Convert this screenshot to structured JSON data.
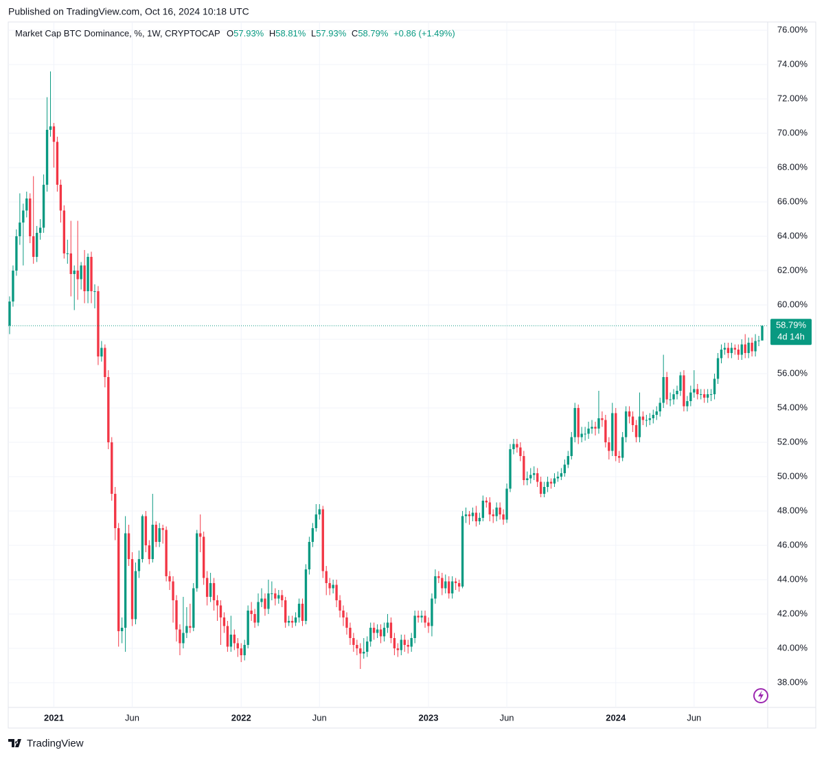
{
  "header": {
    "published": "Published on TradingView.com, Oct 16, 2024 10:18 UTC",
    "symbol": "Market Cap BTC Dominance, %, 1W, CRYPTOCAP",
    "fields": [
      {
        "key": "O",
        "value": "57.93%"
      },
      {
        "key": "H",
        "value": "58.81%"
      },
      {
        "key": "L",
        "value": "57.93%"
      },
      {
        "key": "C",
        "value": "58.79%"
      }
    ],
    "change": "+0.86 (+1.49%)"
  },
  "footer": "TradingView",
  "chart_data": {
    "type": "candlestick",
    "colors": {
      "up": "#089981",
      "down": "#f23645"
    },
    "price_tag": "58.79%",
    "countdown": "4d 14h",
    "ylim": [
      36.56,
      76.44
    ],
    "yticks": [
      {
        "value": 38,
        "label": "38.00%"
      },
      {
        "value": 40,
        "label": "40.00%"
      },
      {
        "value": 42,
        "label": "42.00%"
      },
      {
        "value": 44,
        "label": "44.00%"
      },
      {
        "value": 46,
        "label": "46.00%"
      },
      {
        "value": 48,
        "label": "48.00%"
      },
      {
        "value": 50,
        "label": "50.00%"
      },
      {
        "value": 52,
        "label": "52.00%"
      },
      {
        "value": 54,
        "label": "54.00%"
      },
      {
        "value": 56,
        "label": "56.00%"
      },
      {
        "value": 58,
        "label": "58.00%"
      },
      {
        "value": 60,
        "label": "60.00%"
      },
      {
        "value": 62,
        "label": "62.00%"
      },
      {
        "value": 64,
        "label": "64.00%"
      },
      {
        "value": 66,
        "label": "66.00%"
      },
      {
        "value": 68,
        "label": "68.00%"
      },
      {
        "value": 70,
        "label": "70.00%"
      },
      {
        "value": 72,
        "label": "72.00%"
      },
      {
        "value": 74,
        "label": "74.00%"
      },
      {
        "value": 76,
        "label": "76.00%"
      }
    ],
    "grid": true,
    "categories": [
      null,
      null,
      null,
      null,
      null,
      null,
      null,
      null,
      null,
      null,
      null,
      null,
      null,
      "2021",
      null,
      null,
      null,
      null,
      null,
      null,
      null,
      null,
      null,
      null,
      null,
      null,
      null,
      null,
      null,
      null,
      null,
      null,
      null,
      null,
      null,
      null,
      "Jun",
      null,
      null,
      null,
      null,
      null,
      null,
      null,
      null,
      null,
      null,
      null,
      null,
      null,
      null,
      null,
      null,
      null,
      null,
      null,
      null,
      null,
      null,
      null,
      null,
      null,
      null,
      null,
      null,
      null,
      null,
      null,
      "2022",
      null,
      null,
      null,
      null,
      null,
      null,
      null,
      null,
      null,
      null,
      null,
      null,
      null,
      null,
      null,
      null,
      null,
      null,
      null,
      null,
      null,
      null,
      "Jun",
      null,
      null,
      null,
      null,
      null,
      null,
      null,
      null,
      null,
      null,
      null,
      null,
      null,
      null,
      null,
      null,
      null,
      null,
      null,
      null,
      null,
      null,
      null,
      null,
      null,
      null,
      null,
      null,
      null,
      null,
      null,
      "2023",
      null,
      null,
      null,
      null,
      null,
      null,
      null,
      null,
      null,
      null,
      null,
      null,
      null,
      null,
      null,
      null,
      null,
      null,
      null,
      null,
      null,
      null,
      "Jun",
      null,
      null,
      null,
      null,
      null,
      null,
      null,
      null,
      null,
      null,
      null,
      null,
      null,
      null,
      null,
      null,
      null,
      null,
      null,
      null,
      null,
      null,
      null,
      null,
      null,
      null,
      null,
      null,
      null,
      null,
      null,
      "2024",
      null,
      null,
      null,
      null,
      null,
      null,
      null,
      null,
      null,
      null,
      null,
      null,
      null,
      null,
      null,
      null,
      null,
      null,
      null,
      null,
      null,
      null,
      "Jun",
      null,
      null,
      null,
      null,
      null,
      null,
      null,
      null,
      null,
      null,
      null,
      null,
      null,
      null,
      null,
      null,
      null,
      null,
      null,
      null
    ],
    "open": [
      58.8,
      60.2,
      62,
      64,
      64.8,
      65.5,
      66.2,
      64,
      62.8,
      64.2,
      64.5,
      67,
      70.2,
      70.4,
      69.5,
      67,
      65.5,
      63,
      63,
      61.8,
      62,
      61.5,
      62.3,
      60.8,
      62.8,
      60.8,
      60.8,
      57,
      57.5,
      55.8,
      52,
      49,
      47,
      41,
      41.2,
      46.7,
      45.2,
      41.7,
      44.5,
      45.2,
      47.7,
      46,
      45.2,
      47.2,
      46.2,
      47,
      46.9,
      44.2,
      43.9,
      42.8,
      41.1,
      40.3,
      40.9,
      41.3,
      41.2,
      43.5,
      46.7,
      46.5,
      44.1,
      43,
      43.8,
      42.8,
      42.5,
      41.8,
      41.3,
      40.1,
      40.8,
      40.3,
      40,
      39.6,
      40.2,
      42.2,
      42,
      41.5,
      42.7,
      42.9,
      42.3,
      43.2,
      43.2,
      42.9,
      43.1,
      42.8,
      41.5,
      41.6,
      41.5,
      41.8,
      42.6,
      41.6,
      44.6,
      46.2,
      47,
      47.8,
      48.1,
      44.5,
      43.8,
      43.5,
      43.7,
      42.8,
      42.2,
      41.8,
      41.2,
      40.6,
      40.2,
      40,
      39.7,
      39.8,
      40.4,
      41.2,
      40.9,
      41.1,
      40.7,
      41.2,
      41.5,
      40.6,
      40,
      39.9,
      40.5,
      40.2,
      40.1,
      40.6,
      41.9,
      41.8,
      41.9,
      41.5,
      41.3,
      42.9,
      44.2,
      44.1,
      43.5,
      43.9,
      43.2,
      43.9,
      43.8,
      43.6,
      47.7,
      47.8,
      47.7,
      47.9,
      47.4,
      47.6,
      48.6,
      48.5,
      47.8,
      47.7,
      48.2,
      47.8,
      47.5,
      49.3,
      51.6,
      51.9,
      51.7,
      51.2,
      49.8,
      49.9,
      50.1,
      50.2,
      49.7,
      49,
      49.4,
      49.7,
      49.6,
      49.9,
      50,
      50.2,
      50.7,
      51.2,
      52.3,
      54,
      52.3,
      52.5,
      52.5,
      52.8,
      52.9,
      52.8,
      53.4,
      53.3,
      52,
      51.5,
      53.7,
      51.2,
      51.1,
      52.3,
      53.8,
      53.5,
      53,
      52.3,
      53.5,
      53.3,
      53.3,
      53.4,
      53.6,
      53.8,
      54.3,
      55.8,
      54.5,
      54.5,
      54.8,
      55,
      55.9,
      54.1,
      54.4,
      54.9,
      55.1,
      54.8,
      54.8,
      54.6,
      54.8,
      54.8,
      55.7,
      56.9,
      57.4,
      57.5,
      57.2,
      57.5,
      57.4,
      57.1,
      57.7,
      57.2,
      57.8,
      57.3,
      57.9,
      57.93
    ],
    "high": [
      60.5,
      62.3,
      64.4,
      66.5,
      65.9,
      66.6,
      66.5,
      67.5,
      64.6,
      65,
      67.6,
      72.1,
      73.6,
      70.6,
      69.8,
      67.3,
      65.8,
      63.8,
      64.9,
      62.3,
      64.9,
      62.5,
      63.2,
      63,
      63.1,
      61.2,
      61.1,
      57.9,
      57.7,
      56.2,
      52.3,
      49.4,
      47.3,
      41.8,
      47.7,
      47.2,
      45.6,
      45,
      45.7,
      47.8,
      48,
      46.3,
      49,
      47.4,
      47.3,
      47.2,
      47.1,
      44.5,
      44.2,
      43.1,
      41.4,
      43,
      42.4,
      42.6,
      43.8,
      46.9,
      47.8,
      46.8,
      44.5,
      44.4,
      44.1,
      43.1,
      42.8,
      42.1,
      41.6,
      41.9,
      41.1,
      40.6,
      40.3,
      40.5,
      42.5,
      42.7,
      42.3,
      43.2,
      43.5,
      43.2,
      44,
      43.9,
      43.5,
      43.4,
      43.4,
      43,
      41.9,
      41.9,
      42.1,
      42.9,
      42.9,
      44.9,
      46.5,
      47.3,
      48.4,
      48.4,
      48.3,
      44.8,
      44.1,
      44,
      44,
      43.1,
      42.5,
      42.1,
      41.5,
      40.9,
      40.5,
      40.3,
      40.6,
      40.7,
      41.5,
      41.5,
      41.4,
      41.4,
      41.5,
      42,
      41.8,
      40.9,
      40.3,
      40.8,
      40.8,
      40.5,
      40.9,
      42.2,
      42.2,
      42.2,
      42.2,
      41.8,
      43.2,
      44.6,
      44.5,
      44.4,
      44.3,
      44.2,
      44.2,
      44.1,
      44,
      48,
      48.2,
      48,
      48.2,
      48.3,
      47.9,
      48.9,
      48.8,
      48.8,
      48.1,
      48.5,
      48.5,
      48.1,
      49.6,
      51.9,
      52.2,
      52.2,
      52,
      51.5,
      50.3,
      50.5,
      50.6,
      50.5,
      50,
      49.7,
      50,
      49.9,
      50.2,
      50.3,
      50.5,
      51,
      51.5,
      52.6,
      54.3,
      54.2,
      52.9,
      52.9,
      53.2,
      53.3,
      53.2,
      55,
      53.8,
      53.6,
      52.3,
      54.3,
      54,
      51.5,
      52.6,
      54.1,
      54.1,
      53.8,
      53.3,
      54.9,
      53.8,
      53.6,
      53.7,
      53.9,
      54.1,
      54.6,
      57.1,
      56.1,
      54.9,
      55.1,
      55.3,
      56.1,
      56.2,
      54.7,
      55.3,
      56.2,
      55.4,
      55.1,
      55.1,
      55.1,
      55.1,
      56,
      57.2,
      57.7,
      57.8,
      57.8,
      57.8,
      57.7,
      57.7,
      58,
      58.3,
      58.1,
      58.1,
      58.3,
      58.2,
      58.81
    ],
    "low": [
      58.3,
      59.9,
      61.7,
      63.5,
      62.3,
      65.1,
      63.6,
      62.4,
      62.5,
      63.8,
      64.2,
      66.6,
      69.8,
      68,
      66.6,
      64.8,
      62.7,
      62.4,
      60.5,
      59.7,
      60.3,
      60.9,
      60.1,
      60.1,
      60.1,
      59.8,
      56.5,
      56.7,
      55.2,
      51.6,
      48.6,
      46.3,
      40.1,
      40.3,
      39.8,
      44.8,
      41.3,
      41.4,
      44.1,
      45,
      45.6,
      44.9,
      45,
      45.9,
      45.9,
      46.1,
      43.9,
      43.4,
      41.5,
      40.4,
      39.6,
      40,
      40.6,
      40.9,
      41,
      43.3,
      45.6,
      43.7,
      42.5,
      42.7,
      42.2,
      41.6,
      40.2,
      40.9,
      39.8,
      39.8,
      39.9,
      39.5,
      39.2,
      39.3,
      40,
      41.6,
      41.2,
      41.3,
      42.4,
      41.9,
      42,
      42.8,
      42.5,
      42.6,
      42.4,
      41.2,
      41.3,
      41.2,
      41.3,
      41.5,
      41.3,
      41.4,
      44.3,
      45.9,
      46.8,
      47.5,
      44.1,
      43.1,
      43.1,
      43.2,
      42.4,
      41.8,
      41.3,
      40.8,
      40.2,
      39.8,
      39.6,
      38.8,
      39.4,
      39.5,
      40.1,
      40.5,
      40.6,
      40.3,
      40.4,
      40.9,
      40.3,
      39.6,
      39.5,
      39.6,
      39.8,
      39.7,
      39.8,
      40.3,
      41.5,
      41.5,
      41.2,
      40.9,
      40.7,
      42.6,
      43.8,
      43.1,
      43.2,
      42.9,
      42.9,
      43.4,
      43.3,
      43.5,
      47.3,
      47.2,
      47.4,
      47.1,
      47.2,
      47.4,
      48.2,
      47.4,
      47.3,
      47.4,
      47.5,
      47.2,
      47.3,
      49.1,
      51.3,
      51.4,
      50.9,
      49.5,
      49.5,
      49.6,
      49.8,
      49.4,
      48.8,
      48.8,
      49.1,
      49.3,
      49.4,
      49.7,
      49.8,
      50,
      50.5,
      51,
      52,
      51.9,
      52,
      52.1,
      52.2,
      52.5,
      52.4,
      52.5,
      52.9,
      51.7,
      51,
      51.2,
      50.9,
      50.8,
      50.9,
      52,
      53.1,
      52.6,
      52,
      52,
      53,
      52.9,
      53,
      53.1,
      53.3,
      53.5,
      54,
      54.2,
      54.1,
      54.2,
      54.5,
      54.7,
      53.8,
      53.8,
      54.1,
      54.6,
      54.5,
      54.5,
      54.3,
      54.3,
      54.4,
      54.5,
      55.4,
      56.6,
      57.1,
      56.9,
      56.9,
      57.1,
      56.8,
      56.8,
      56.9,
      56.9,
      57,
      57,
      57.6,
      57.93
    ],
    "close": [
      60.2,
      62,
      64,
      64.8,
      65.5,
      66.2,
      64,
      62.8,
      64.2,
      64.5,
      67,
      70.2,
      70.4,
      69.5,
      67,
      65.5,
      63,
      63,
      61.8,
      62,
      61.5,
      62.3,
      60.8,
      62.8,
      60.8,
      60.8,
      57,
      57.5,
      55.8,
      52,
      49,
      47,
      41,
      41.2,
      46.7,
      45.2,
      41.7,
      44.5,
      45.2,
      47.7,
      46,
      45.2,
      47.2,
      46.2,
      47,
      46.9,
      44.2,
      43.9,
      42.8,
      41.1,
      40.3,
      40.9,
      41.3,
      41.2,
      43.5,
      46.7,
      46.5,
      44.1,
      43,
      43.8,
      42.8,
      42.5,
      41.8,
      41.3,
      40.1,
      40.8,
      40.3,
      40,
      39.6,
      40.2,
      42.2,
      42,
      41.5,
      42.7,
      42.9,
      42.3,
      43.2,
      43.2,
      42.9,
      43.1,
      42.8,
      41.5,
      41.6,
      41.5,
      41.8,
      42.6,
      41.6,
      44.6,
      46.2,
      47,
      47.8,
      48.1,
      44.5,
      43.8,
      43.5,
      43.7,
      42.8,
      42.2,
      41.8,
      41.2,
      40.6,
      40.2,
      40,
      39.7,
      39.8,
      40.4,
      41.2,
      40.9,
      41.1,
      40.7,
      41.2,
      41.5,
      40.6,
      40,
      39.9,
      40.5,
      40.2,
      40.1,
      40.6,
      41.9,
      41.8,
      41.9,
      41.5,
      41.3,
      42.9,
      44.2,
      44.1,
      43.5,
      43.9,
      43.2,
      43.9,
      43.8,
      43.6,
      47.7,
      47.8,
      47.7,
      47.9,
      47.4,
      47.6,
      48.6,
      48.5,
      47.8,
      47.7,
      48.2,
      47.8,
      47.5,
      49.3,
      51.6,
      51.9,
      51.7,
      51.2,
      49.8,
      49.9,
      50.1,
      50.2,
      49.7,
      49,
      49.4,
      49.7,
      49.6,
      49.9,
      50,
      50.2,
      50.7,
      51.2,
      52.3,
      54,
      52.3,
      52.5,
      52.5,
      52.8,
      52.9,
      52.8,
      53.4,
      53.3,
      52,
      51.5,
      53.7,
      51.2,
      51.1,
      52.3,
      53.8,
      53.5,
      53,
      52.3,
      53.5,
      53.3,
      53.3,
      53.4,
      53.6,
      53.8,
      54.3,
      55.8,
      54.5,
      54.5,
      54.8,
      55,
      55.9,
      54.1,
      54.4,
      54.9,
      55.1,
      54.8,
      54.8,
      54.6,
      54.8,
      54.8,
      55.7,
      56.9,
      57.4,
      57.5,
      57.2,
      57.5,
      57.4,
      57.1,
      57.7,
      57.2,
      57.8,
      57.3,
      57.9,
      57.93,
      58.79
    ]
  }
}
